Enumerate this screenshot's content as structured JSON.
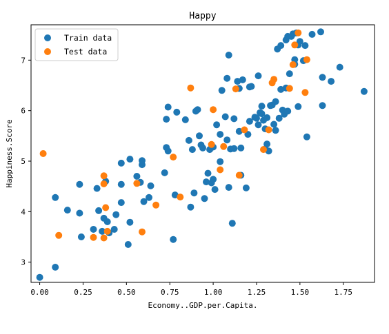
{
  "chart_data": {
    "type": "scatter",
    "title": "Happy",
    "xlabel": "Economy..GDP.per.Capita.",
    "ylabel": "Happiness.Score",
    "xlim": [
      -0.05,
      1.93
    ],
    "ylim": [
      2.6,
      7.7
    ],
    "xticks": [
      0.0,
      0.25,
      0.5,
      0.75,
      1.0,
      1.25,
      1.5,
      1.75
    ],
    "xtick_labels": [
      "0.00",
      "0.25",
      "0.50",
      "0.75",
      "1.00",
      "1.25",
      "1.50",
      "1.75"
    ],
    "yticks": [
      3,
      4,
      5,
      6,
      7
    ],
    "ytick_labels": [
      "3",
      "4",
      "5",
      "6",
      "7"
    ],
    "grid": false,
    "legend_position": "top-left",
    "series": [
      {
        "name": "Train data",
        "color": "#1f77b4",
        "points": [
          [
            0.0,
            2.7
          ],
          [
            0.09,
            2.9
          ],
          [
            0.09,
            4.28
          ],
          [
            0.16,
            4.03
          ],
          [
            0.23,
            3.97
          ],
          [
            0.23,
            4.54
          ],
          [
            0.24,
            3.5
          ],
          [
            0.31,
            3.65
          ],
          [
            0.33,
            4.46
          ],
          [
            0.34,
            4.02
          ],
          [
            0.36,
            3.61
          ],
          [
            0.37,
            3.87
          ],
          [
            0.38,
            4.6
          ],
          [
            0.39,
            3.8
          ],
          [
            0.4,
            3.58
          ],
          [
            0.43,
            3.65
          ],
          [
            0.44,
            3.94
          ],
          [
            0.47,
            4.18
          ],
          [
            0.47,
            4.54
          ],
          [
            0.47,
            4.96
          ],
          [
            0.51,
            3.35
          ],
          [
            0.52,
            3.79
          ],
          [
            0.52,
            5.04
          ],
          [
            0.56,
            4.7
          ],
          [
            0.58,
            4.58
          ],
          [
            0.59,
            4.93
          ],
          [
            0.59,
            5.01
          ],
          [
            0.6,
            4.2
          ],
          [
            0.63,
            4.28
          ],
          [
            0.64,
            4.51
          ],
          [
            0.72,
            4.77
          ],
          [
            0.73,
            5.27
          ],
          [
            0.73,
            5.83
          ],
          [
            0.74,
            6.07
          ],
          [
            0.74,
            5.2
          ],
          [
            0.77,
            3.45
          ],
          [
            0.78,
            4.33
          ],
          [
            0.79,
            5.97
          ],
          [
            0.84,
            5.82
          ],
          [
            0.86,
            5.41
          ],
          [
            0.87,
            4.09
          ],
          [
            0.88,
            5.23
          ],
          [
            0.89,
            4.37
          ],
          [
            0.9,
            5.99
          ],
          [
            0.91,
            6.02
          ],
          [
            0.92,
            5.5
          ],
          [
            0.93,
            5.32
          ],
          [
            0.94,
            5.26
          ],
          [
            0.95,
            4.26
          ],
          [
            0.96,
            4.59
          ],
          [
            0.97,
            4.76
          ],
          [
            0.98,
            5.23
          ],
          [
            0.99,
            4.57
          ],
          [
            1.0,
            4.64
          ],
          [
            1.0,
            5.28
          ],
          [
            1.01,
            4.44
          ],
          [
            1.02,
            5.72
          ],
          [
            1.04,
            5.53
          ],
          [
            1.04,
            4.99
          ],
          [
            1.05,
            6.4
          ],
          [
            1.07,
            5.88
          ],
          [
            1.08,
            6.64
          ],
          [
            1.08,
            5.42
          ],
          [
            1.09,
            4.48
          ],
          [
            1.09,
            7.1
          ],
          [
            1.1,
            5.24
          ],
          [
            1.11,
            3.77
          ],
          [
            1.12,
            5.25
          ],
          [
            1.12,
            5.84
          ],
          [
            1.14,
            6.58
          ],
          [
            1.15,
            6.44
          ],
          [
            1.15,
            5.59
          ],
          [
            1.16,
            5.26
          ],
          [
            1.16,
            4.72
          ],
          [
            1.17,
            6.61
          ],
          [
            1.19,
            4.47
          ],
          [
            1.2,
            5.53
          ],
          [
            1.21,
            6.47
          ],
          [
            1.21,
            5.79
          ],
          [
            1.22,
            6.48
          ],
          [
            1.24,
            5.87
          ],
          [
            1.25,
            5.85
          ],
          [
            1.26,
            6.69
          ],
          [
            1.26,
            5.72
          ],
          [
            1.27,
            5.96
          ],
          [
            1.28,
            5.94
          ],
          [
            1.28,
            6.09
          ],
          [
            1.29,
            5.81
          ],
          [
            1.3,
            5.64
          ],
          [
            1.3,
            5.24
          ],
          [
            1.31,
            5.86
          ],
          [
            1.31,
            5.34
          ],
          [
            1.32,
            5.2
          ],
          [
            1.33,
            6.1
          ],
          [
            1.34,
            6.11
          ],
          [
            1.35,
            5.73
          ],
          [
            1.36,
            6.18
          ],
          [
            1.36,
            5.61
          ],
          [
            1.37,
            7.22
          ],
          [
            1.38,
            5.85
          ],
          [
            1.39,
            6.42
          ],
          [
            1.39,
            7.29
          ],
          [
            1.4,
            6.01
          ],
          [
            1.41,
            5.93
          ],
          [
            1.42,
            7.4
          ],
          [
            1.42,
            6.45
          ],
          [
            1.43,
            7.47
          ],
          [
            1.43,
            5.99
          ],
          [
            1.44,
            6.73
          ],
          [
            1.45,
            7.47
          ],
          [
            1.46,
            7.52
          ],
          [
            1.47,
            7.01
          ],
          [
            1.47,
            6.92
          ],
          [
            1.48,
            7.54
          ],
          [
            1.49,
            7.3
          ],
          [
            1.49,
            6.08
          ],
          [
            1.5,
            7.37
          ],
          [
            1.52,
            6.99
          ],
          [
            1.53,
            7.29
          ],
          [
            1.54,
            5.48
          ],
          [
            1.57,
            7.51
          ],
          [
            1.62,
            7.56
          ],
          [
            1.63,
            6.66
          ],
          [
            1.63,
            6.1
          ],
          [
            1.68,
            6.58
          ],
          [
            1.73,
            6.86
          ],
          [
            1.87,
            6.38
          ]
        ]
      },
      {
        "name": "Test data",
        "color": "#ff7f0e",
        "points": [
          [
            0.02,
            5.15
          ],
          [
            0.11,
            3.53
          ],
          [
            0.31,
            3.49
          ],
          [
            0.37,
            3.48
          ],
          [
            0.37,
            4.55
          ],
          [
            0.37,
            4.71
          ],
          [
            0.38,
            4.08
          ],
          [
            0.39,
            3.61
          ],
          [
            0.56,
            4.56
          ],
          [
            0.59,
            3.6
          ],
          [
            0.67,
            4.13
          ],
          [
            0.77,
            5.08
          ],
          [
            0.81,
            4.29
          ],
          [
            0.87,
            6.45
          ],
          [
            0.99,
            5.33
          ],
          [
            1.0,
            6.02
          ],
          [
            1.04,
            4.83
          ],
          [
            1.06,
            5.29
          ],
          [
            1.13,
            6.43
          ],
          [
            1.15,
            4.72
          ],
          [
            1.18,
            5.62
          ],
          [
            1.29,
            5.23
          ],
          [
            1.32,
            5.62
          ],
          [
            1.34,
            6.55
          ],
          [
            1.35,
            6.62
          ],
          [
            1.44,
            6.44
          ],
          [
            1.46,
            6.91
          ],
          [
            1.47,
            7.3
          ],
          [
            1.49,
            7.54
          ],
          [
            1.53,
            6.36
          ],
          [
            1.54,
            7.01
          ]
        ]
      }
    ]
  }
}
